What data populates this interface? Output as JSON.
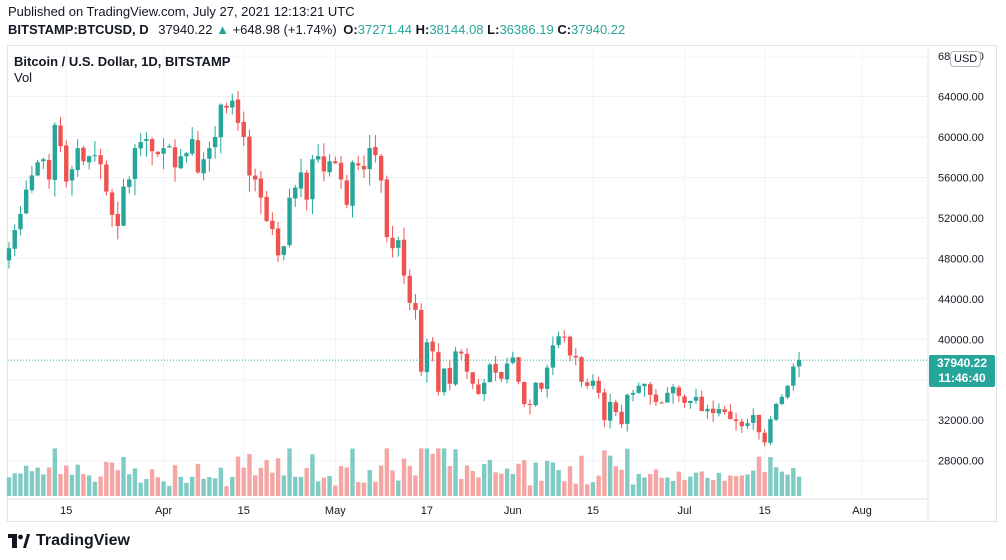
{
  "header": {
    "published": "Published on TradingView.com, July 27, 2021 12:13:21 UTC",
    "symbol": "BITSTAMP:BTCUSD, D",
    "last": "37940.22",
    "change_arrow": "▲",
    "change": "+648.98 (+1.74%)",
    "o_label": "O:",
    "o": "37271.44",
    "h_label": "H:",
    "h": "38144.08",
    "l_label": "L:",
    "l": "36386.19",
    "c_label": "C:",
    "c": "37940.22"
  },
  "legend": {
    "title": "Bitcoin / U.S. Dollar, 1D, BITSTAMP",
    "vol": "Vol"
  },
  "currency_badge": "USD",
  "price_tag": {
    "price": "37940.22",
    "countdown": "11:46:40"
  },
  "brand": {
    "name": "TradingView"
  },
  "colors": {
    "up": "#26a69a",
    "down": "#ef5350",
    "vol_up": "#80cbc4",
    "vol_down": "#f5a5a3",
    "grid": "#f0f3fa",
    "axis_text": "#131722"
  },
  "chart_data": {
    "type": "candlestick",
    "title": "Bitcoin / U.S. Dollar, 1D, BITSTAMP",
    "ylim": [
      24500,
      69000
    ],
    "y_ticks": [
      28000,
      32000,
      36000,
      40000,
      44000,
      48000,
      52000,
      56000,
      60000,
      64000,
      68000
    ],
    "y_tick_labels": [
      "28000.00",
      "32000.00",
      "36000.00",
      "40000.00",
      "44000.00",
      "48000.00",
      "52000.00",
      "56000.00",
      "60000.00",
      "64000.00",
      "68000.00"
    ],
    "x_ticks": [
      {
        "day": 10,
        "label": "15"
      },
      {
        "day": 27,
        "label": "Apr"
      },
      {
        "day": 41,
        "label": "15"
      },
      {
        "day": 57,
        "label": "May"
      },
      {
        "day": 73,
        "label": "17"
      },
      {
        "day": 88,
        "label": "Jun"
      },
      {
        "day": 102,
        "label": "15"
      },
      {
        "day": 118,
        "label": "Jul"
      },
      {
        "day": 132,
        "label": "15"
      },
      {
        "day": 149,
        "label": "Aug"
      }
    ],
    "first_date": "2021-03-05",
    "closes": [
      49000,
      50800,
      52400,
      54800,
      56200,
      57500,
      57800,
      55800,
      61200,
      59100,
      55600,
      56800,
      58900,
      57600,
      58100,
      58200,
      57300,
      54600,
      52300,
      51200,
      55100,
      55800,
      58900,
      59500,
      59800,
      58600,
      58300,
      58900,
      59100,
      57000,
      58100,
      58400,
      59800,
      56500,
      57800,
      58900,
      60000,
      63200,
      62900,
      63600,
      61400,
      60000,
      56200,
      55800,
      54000,
      51700,
      50900,
      48300,
      49200,
      54000,
      55000,
      56500,
      53800,
      57800,
      58100,
      56600,
      57600,
      57400,
      55800,
      53300,
      57500,
      57200,
      56800,
      58900,
      58200,
      55700,
      50100,
      49000,
      49800,
      46300,
      43600,
      42900,
      36800,
      39700,
      38800,
      34800,
      37100,
      35600,
      38800,
      38600,
      36800,
      35600,
      34600,
      35700,
      37500,
      36700,
      36100,
      37600,
      38200,
      35800,
      33600,
      33500,
      35700,
      35100,
      37200,
      39400,
      40300,
      40200,
      38400,
      38200,
      35800,
      35400,
      35900,
      34700,
      32000,
      33800,
      32800,
      31600,
      34500,
      34700,
      35400,
      35600,
      34500,
      33800,
      33700,
      34700,
      35300,
      34400,
      33700,
      33900,
      34300,
      32900,
      33100,
      32700,
      33100,
      32800,
      32100,
      31900,
      31400,
      31700,
      32500,
      30800,
      29800,
      32100,
      33600,
      34300,
      35400,
      37300,
      37940
    ],
    "volume_ylim": [
      0,
      34
    ]
  }
}
